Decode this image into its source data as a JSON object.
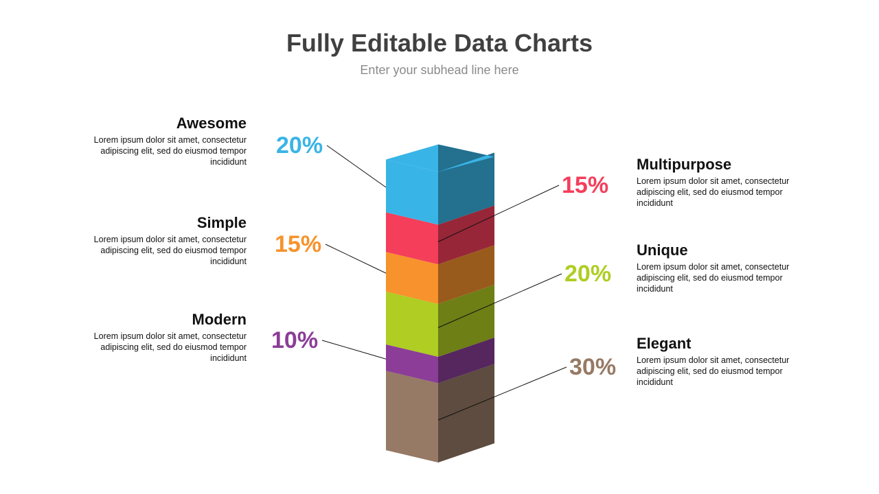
{
  "header": {
    "title": "Fully Editable Data Charts",
    "subtitle": "Enter your subhead line here"
  },
  "chart_data": {
    "type": "stacked-3d-column",
    "segments": [
      {
        "label": "Elegant",
        "value": 30,
        "display": "30%",
        "color": "#967a65",
        "side": "right",
        "description": "Lorem ipsum dolor sit amet, consectetur adipiscing elit, sed do eiusmod tempor incididunt"
      },
      {
        "label": "Modern",
        "value": 10,
        "display": "10%",
        "color": "#8b3d97",
        "side": "left",
        "description": "Lorem ipsum dolor sit amet, consectetur adipiscing elit, sed do eiusmod tempor incididunt"
      },
      {
        "label": "Unique",
        "value": 20,
        "display": "20%",
        "color": "#afcd22",
        "side": "right",
        "description": "Lorem ipsum dolor sit amet, consectetur adipiscing elit, sed do eiusmod tempor incididunt"
      },
      {
        "label": "Simple",
        "value": 15,
        "display": "15%",
        "color": "#f7922c",
        "side": "left",
        "description": "Lorem ipsum dolor sit amet, consectetur adipiscing elit, sed do eiusmod tempor incididunt"
      },
      {
        "label": "Multipurpose",
        "value": 15,
        "display": "15%",
        "color": "#f43e5a",
        "side": "right",
        "description": "Lorem ipsum dolor sit amet, consectetur adipiscing elit, sed do eiusmod tempor incididunt"
      },
      {
        "label": "Awesome",
        "value": 20,
        "display": "20%",
        "color": "#39b4e6",
        "side": "left",
        "description": "Lorem ipsum dolor sit amet, consectetur adipiscing elit, sed do eiusmod tempor incididunt"
      }
    ]
  }
}
